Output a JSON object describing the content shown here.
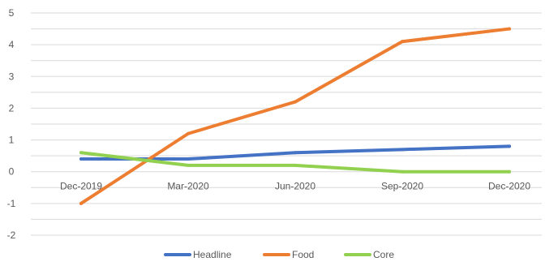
{
  "chart_data": {
    "type": "line",
    "categories": [
      "Dec-2019",
      "Mar-2020",
      "Jun-2020",
      "Sep-2020",
      "Dec-2020"
    ],
    "series": [
      {
        "name": "Headline",
        "color": "#4472c4",
        "values": [
          0.4,
          0.4,
          0.6,
          0.7,
          0.8
        ]
      },
      {
        "name": "Food",
        "color": "#ed7d31",
        "values": [
          -1.0,
          1.2,
          2.2,
          4.1,
          4.5
        ]
      },
      {
        "name": "Core",
        "color": "#92d050",
        "values": [
          0.6,
          0.2,
          0.2,
          0.0,
          0.0
        ]
      }
    ],
    "ylim": [
      -2,
      5
    ],
    "yticks": [
      "-2",
      "-1",
      "0",
      "1",
      "2",
      "3",
      "4",
      "5"
    ],
    "grid": true,
    "legend_position": "bottom",
    "title": "",
    "xlabel": "",
    "ylabel": ""
  }
}
